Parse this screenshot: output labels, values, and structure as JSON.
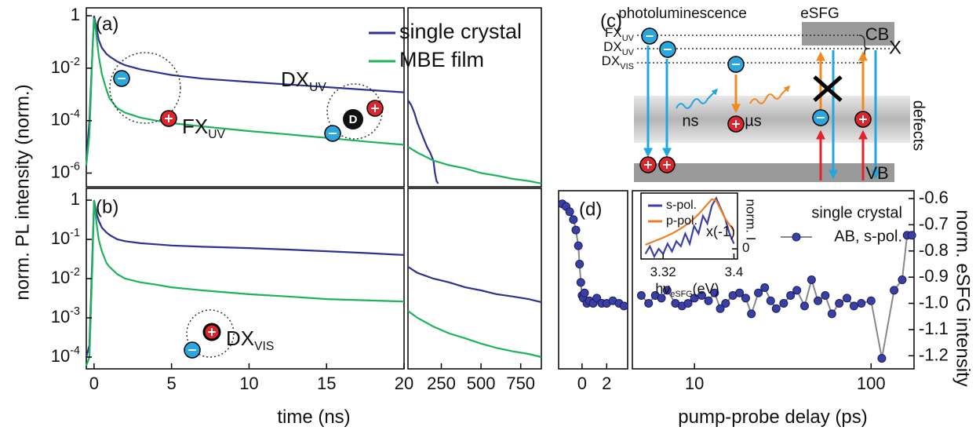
{
  "chart_data": [
    {
      "type": "line",
      "panel_label": "(a)",
      "yscale": "log",
      "xlim": [
        -0.5,
        20
      ],
      "ylim": [
        3e-07,
        2
      ],
      "yticks": [
        1,
        {
          "value": 0.01,
          "label": "10",
          "exponent": "-2"
        },
        {
          "value": 0.0001,
          "label": "10",
          "exponent": "-4"
        },
        {
          "value": 1e-06,
          "label": "10",
          "exponent": "-6"
        }
      ],
      "y_label": "norm. PL intensity (norm.)",
      "annotations": [
        {
          "text": "FX",
          "sub": "UV"
        },
        {
          "text": "DX",
          "sub": "UV"
        }
      ],
      "donor_label": "D",
      "series": [
        {
          "name": "single crystal",
          "color": "#2e3192",
          "x": [
            -0.5,
            -0.3,
            -0.1,
            0,
            0.1,
            0.2,
            0.3,
            0.5,
            0.8,
            1,
            1.5,
            2,
            3,
            4,
            5,
            7,
            10,
            12.5,
            15,
            17.5,
            20
          ],
          "values": [
            3e-06,
            0.0001,
            0.05,
            1,
            0.5,
            0.25,
            0.12,
            0.06,
            0.035,
            0.028,
            0.018,
            0.013,
            0.009,
            0.007,
            0.0055,
            0.004,
            0.003,
            0.0024,
            0.0019,
            0.0015,
            0.0012
          ]
        },
        {
          "name": "MBE film",
          "color": "#1db35a",
          "x": [
            -0.5,
            -0.3,
            -0.1,
            0,
            0.1,
            0.2,
            0.3,
            0.5,
            0.8,
            1,
            1.5,
            2,
            3,
            4,
            5,
            7,
            10,
            12.5,
            15,
            17.5,
            20
          ],
          "values": [
            2e-06,
            3e-05,
            0.05,
            0.8,
            0.3,
            0.1,
            0.03,
            0.006,
            0.0015,
            0.0007,
            0.0003,
            0.0002,
            0.00013,
            0.0001,
            8e-05,
            6e-05,
            4e-05,
            3e-05,
            2.2e-05,
            1.6e-05,
            1.2e-05
          ]
        }
      ]
    },
    {
      "type": "line",
      "yscale": "log",
      "xlim": [
        40,
        880
      ],
      "ylim": [
        3e-07,
        2
      ],
      "series": [
        {
          "color": "#2e3192",
          "x": [
            40,
            60,
            80,
            100,
            120,
            140,
            160,
            180,
            200,
            210,
            220,
            230
          ],
          "values": [
            0.0006,
            0.0004,
            0.0002,
            8e-05,
            4e-05,
            2e-05,
            1e-05,
            6e-06,
            3e-06,
            1e-06,
            5e-07,
            4e-07
          ]
        },
        {
          "color": "#1db35a",
          "x": [
            40,
            100,
            200,
            300,
            400,
            500,
            600,
            700,
            800,
            880
          ],
          "values": [
            1e-05,
            6e-06,
            3e-06,
            2e-06,
            1.5e-06,
            1e-06,
            8e-07,
            6e-07,
            5e-07,
            4e-07
          ]
        }
      ]
    },
    {
      "type": "line",
      "panel_label": "(b)",
      "yscale": "log",
      "xlim": [
        -0.5,
        20
      ],
      "ylim": [
        5e-05,
        2
      ],
      "xticks": [
        0,
        5,
        10,
        15,
        20
      ],
      "x_label": "time (ns)",
      "yticks": [
        1,
        {
          "value": 0.1,
          "label": "10",
          "exponent": "-1"
        },
        {
          "value": 0.01,
          "label": "10",
          "exponent": "-2"
        },
        {
          "value": 0.001,
          "label": "10",
          "exponent": "-3"
        },
        {
          "value": 0.0001,
          "label": "10",
          "exponent": "-4"
        }
      ],
      "annotations": [
        {
          "text": "DX",
          "sub": "VIS"
        }
      ],
      "series": [
        {
          "color": "#2e3192",
          "x": [
            -0.5,
            -0.3,
            -0.1,
            0,
            0.1,
            0.2,
            0.3,
            0.5,
            0.8,
            1,
            1.5,
            2,
            3,
            4,
            5,
            7,
            10,
            12.5,
            15,
            17.5,
            20
          ],
          "values": [
            0.0001,
            0.0002,
            0.05,
            1,
            0.6,
            0.4,
            0.3,
            0.2,
            0.15,
            0.13,
            0.1,
            0.09,
            0.08,
            0.075,
            0.07,
            0.065,
            0.06,
            0.055,
            0.05,
            0.045,
            0.04
          ]
        },
        {
          "color": "#1db35a",
          "x": [
            -0.5,
            -0.3,
            -0.1,
            0,
            0.1,
            0.2,
            0.3,
            0.5,
            0.8,
            1,
            1.5,
            2,
            3,
            4,
            5,
            7,
            10,
            12.5,
            15,
            17.5,
            20
          ],
          "values": [
            6e-05,
            0.0001,
            0.03,
            1,
            0.4,
            0.2,
            0.1,
            0.05,
            0.025,
            0.02,
            0.013,
            0.01,
            0.008,
            0.007,
            0.006,
            0.005,
            0.004,
            0.0035,
            0.003,
            0.0028,
            0.0026
          ]
        }
      ]
    },
    {
      "type": "line",
      "yscale": "log",
      "xlim": [
        40,
        880
      ],
      "ylim": [
        5e-05,
        2
      ],
      "xticks": [
        250,
        500,
        750
      ],
      "series": [
        {
          "color": "#2e3192",
          "x": [
            40,
            100,
            200,
            300,
            400,
            500,
            600,
            700,
            800,
            880
          ],
          "values": [
            0.02,
            0.014,
            0.01,
            0.008,
            0.006,
            0.005,
            0.004,
            0.0035,
            0.003,
            0.0025
          ]
        },
        {
          "color": "#1db35a",
          "x": [
            40,
            100,
            200,
            300,
            400,
            500,
            600,
            700,
            800,
            880
          ],
          "values": [
            0.0015,
            0.001,
            0.0006,
            0.0004,
            0.0003,
            0.00022,
            0.00017,
            0.00014,
            0.00012,
            0.0001
          ]
        }
      ]
    },
    {
      "type": "scatter_line",
      "panel_label": "(d)",
      "xlim": [
        -1.9,
        3.7
      ],
      "ylim": [
        -1.25,
        -0.57
      ],
      "xticks": [
        0,
        2
      ],
      "series": [
        {
          "color": "#3a3fa3",
          "x": [
            -1.6,
            -1.3,
            -1.0,
            -0.7,
            -0.5,
            -0.3,
            -0.2,
            -0.1,
            0,
            0.1,
            0.2,
            0.4,
            0.6,
            0.9,
            1.2,
            1.6,
            2.0,
            2.5,
            3.0,
            3.4
          ],
          "values": [
            -0.62,
            -0.63,
            -0.65,
            -0.68,
            -0.72,
            -0.78,
            -0.85,
            -0.92,
            -0.97,
            -0.98,
            -0.96,
            -1.0,
            -0.99,
            -1.0,
            -0.98,
            -1.0,
            -1.0,
            -0.99,
            -1.0,
            -1.01
          ]
        }
      ]
    },
    {
      "type": "scatter_line",
      "xscale": "log",
      "xlim": [
        4.45,
        175
      ],
      "ylim": [
        -1.25,
        -0.57
      ],
      "xticks": [
        10,
        100
      ],
      "yticks": [
        -0.6,
        -0.7,
        -0.8,
        -0.9,
        {
          "value": -1,
          "label": "-1.0"
        },
        -1.1,
        -1.2
      ],
      "x_label": "pump-probe delay (ps)",
      "y_label": "norm. eSFG intensity",
      "legend_title": "single crystal",
      "series": [
        {
          "name": "AB, s-pol.",
          "color": "#3a3fa3",
          "x": [
            5,
            5.5,
            6,
            6.5,
            7,
            7.8,
            8.5,
            9.2,
            10,
            11,
            12,
            13,
            14,
            15,
            16.5,
            18,
            19.5,
            21,
            23,
            25,
            27,
            29,
            32,
            35,
            38,
            42,
            46,
            50,
            55,
            60,
            66,
            73,
            80,
            88,
            100,
            115,
            135,
            150,
            160,
            170
          ],
          "values": [
            -0.97,
            -1.0,
            -0.97,
            -0.98,
            -0.95,
            -1.0,
            -1.01,
            -1.0,
            -0.98,
            -0.97,
            -0.99,
            -0.96,
            -1.02,
            -1.0,
            -0.97,
            -0.96,
            -0.98,
            -1.04,
            -0.96,
            -0.94,
            -0.99,
            -1.02,
            -1.0,
            -0.97,
            -0.95,
            -1.01,
            -0.91,
            -0.99,
            -0.97,
            -1.04,
            -1.0,
            -0.98,
            -1.01,
            -1.0,
            -0.99,
            -1.21,
            -0.95,
            -0.91,
            -0.74,
            -0.74
          ]
        }
      ]
    },
    {
      "type": "line",
      "xlim": [
        3.295,
        3.404
      ],
      "ylim": [
        -0.2,
        1.1
      ],
      "xticks": [
        3.32,
        3.4
      ],
      "yticks": [
        0
      ],
      "x_label": {
        "text": "hν",
        "sub": "eSFG",
        "tail": "(eV)"
      },
      "y_label": "norm. I",
      "annotations": [
        {
          "text": "x(-1)"
        }
      ],
      "series": [
        {
          "name": "s-pol.",
          "color": "#3b3fa8",
          "x": [
            3.3,
            3.305,
            3.31,
            3.315,
            3.32,
            3.325,
            3.33,
            3.335,
            3.34,
            3.345,
            3.35,
            3.355,
            3.36,
            3.365,
            3.37,
            3.375,
            3.38,
            3.385,
            3.39,
            3.395,
            3.4
          ],
          "values": [
            -0.1,
            0.05,
            -0.15,
            0.0,
            -0.1,
            0.1,
            -0.05,
            0.15,
            0.05,
            0.3,
            0.1,
            0.45,
            0.3,
            0.65,
            0.5,
            0.85,
            1.0,
            0.8,
            0.6,
            0.3,
            0.1
          ]
        },
        {
          "name": "p-pol.",
          "color": "#f07c22",
          "x": [
            3.3,
            3.31,
            3.32,
            3.33,
            3.34,
            3.35,
            3.36,
            3.37,
            3.375,
            3.38,
            3.39,
            3.4
          ],
          "values": [
            0.08,
            0.15,
            0.22,
            0.3,
            0.4,
            0.52,
            0.68,
            0.88,
            0.98,
            0.95,
            0.6,
            0.35
          ]
        }
      ]
    }
  ],
  "diagram": {
    "panel_label": "(c)",
    "headers": [
      "photoluminescence",
      "eSFG"
    ],
    "levels": [
      {
        "text": "FX",
        "sub": "UV"
      },
      {
        "text": "DX",
        "sub": "UV"
      },
      {
        "text": "DX",
        "sub": "VIS"
      }
    ],
    "bands": [
      "CB",
      "VB"
    ],
    "exciton": "X",
    "lifetimes": [
      "ns",
      "µs"
    ],
    "defects": "defects"
  }
}
